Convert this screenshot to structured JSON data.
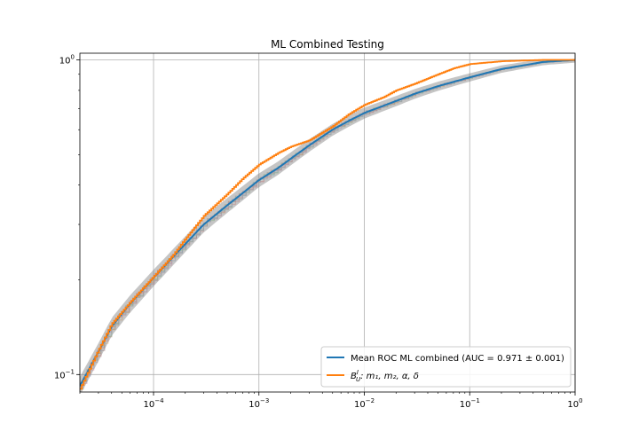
{
  "chart_data": {
    "type": "line",
    "title": "ML Combined Testing",
    "xlabel": "",
    "ylabel": "",
    "xscale": "log",
    "yscale": "log",
    "xlim": [
      2e-05,
      1
    ],
    "ylim": [
      0.088,
      1.05
    ],
    "grid": true,
    "legend_position": "lower-right",
    "x_ticks": [
      {
        "value": 0.0001,
        "base": "10",
        "exp": "−4"
      },
      {
        "value": 0.001,
        "base": "10",
        "exp": "−3"
      },
      {
        "value": 0.01,
        "base": "10",
        "exp": "−2"
      },
      {
        "value": 0.1,
        "base": "10",
        "exp": "−1"
      },
      {
        "value": 1,
        "base": "10",
        "exp": "0"
      }
    ],
    "y_ticks": [
      {
        "value": 0.1,
        "base": "10",
        "exp": "−1"
      },
      {
        "value": 1,
        "base": "10",
        "exp": "0"
      }
    ],
    "series": [
      {
        "name": "Mean ROC  ML combined (AUC = 0.971 ± 0.001)",
        "color": "#1f77b4",
        "style": "mean-line-with-band",
        "x": [
          2e-05,
          3e-05,
          4e-05,
          6e-05,
          0.0001,
          0.0002,
          0.0003,
          0.0005,
          0.0007,
          0.001,
          0.0015,
          0.002,
          0.003,
          0.005,
          0.007,
          0.01,
          0.02,
          0.03,
          0.05,
          0.1,
          0.2,
          0.5,
          1
        ],
        "y": [
          0.092,
          0.118,
          0.142,
          0.168,
          0.203,
          0.26,
          0.3,
          0.345,
          0.377,
          0.415,
          0.452,
          0.485,
          0.535,
          0.6,
          0.638,
          0.678,
          0.74,
          0.78,
          0.825,
          0.88,
          0.935,
          0.985,
          1.0
        ],
        "band": 0.015
      },
      {
        "name": "B_U^I: m_1, m_2, α, δ",
        "color": "#ff7f0e",
        "style": "step",
        "x": [
          2e-05,
          3e-05,
          4e-05,
          6e-05,
          0.0001,
          0.00015,
          0.0002,
          0.0003,
          0.0005,
          0.0007,
          0.001,
          0.0015,
          0.002,
          0.003,
          0.005,
          0.007,
          0.01,
          0.015,
          0.02,
          0.03,
          0.05,
          0.07,
          0.1,
          0.2,
          0.5,
          1
        ],
        "y": [
          0.09,
          0.12,
          0.145,
          0.17,
          0.205,
          0.238,
          0.27,
          0.32,
          0.375,
          0.42,
          0.465,
          0.505,
          0.53,
          0.555,
          0.615,
          0.67,
          0.72,
          0.76,
          0.8,
          0.84,
          0.9,
          0.94,
          0.97,
          0.99,
          1.0,
          1.0
        ]
      }
    ]
  },
  "legend": {
    "entries": [
      {
        "text": "Mean ROC  ML combined (AUC = 0.971 ± 0.001)",
        "color": "#1f77b4"
      },
      {
        "text_base": "B",
        "text_sup": "I",
        "text_sub": "U",
        "text_rest": ": m₁, m₂, α, δ",
        "color": "#ff7f0e"
      }
    ]
  },
  "colors": {
    "fold_colors": [
      "#aec7e8",
      "#ffbb78",
      "#98df8a",
      "#ff9896",
      "#c5b0d5",
      "#c49c94",
      "#f7b6d2",
      "#9edae5"
    ]
  }
}
